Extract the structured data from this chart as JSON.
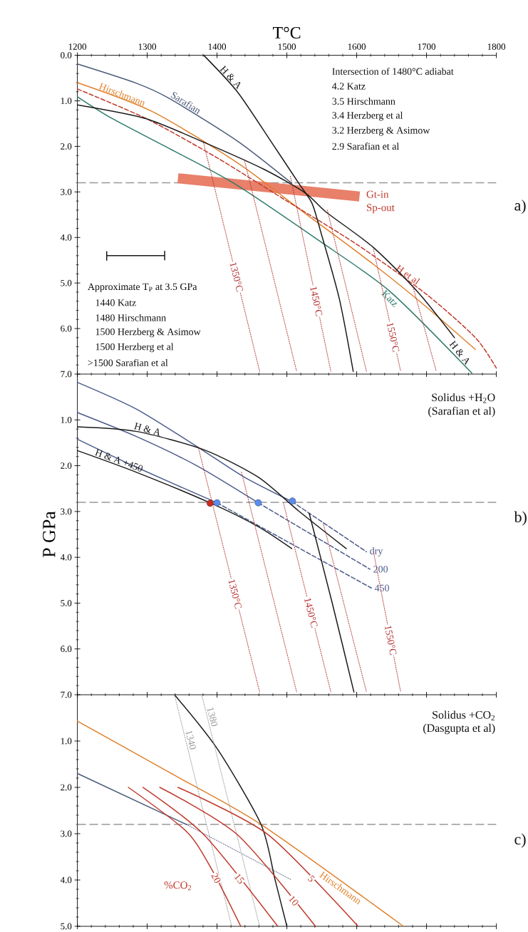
{
  "chart_data": [
    {
      "type": "line",
      "xlabel": "T°C",
      "xlim": [
        1200,
        1800
      ],
      "xticks": [
        1200,
        1300,
        1400,
        1500,
        1600,
        1700,
        1800
      ],
      "ylim": [
        7,
        0
      ],
      "yticks": [
        {
          "value": 0,
          "label": "0.0"
        },
        {
          "value": 1,
          "label": "1.0"
        },
        {
          "value": 2,
          "label": "2.0"
        },
        {
          "value": 3,
          "label": "3.0"
        },
        {
          "value": 4,
          "label": "4.0"
        },
        {
          "value": 5,
          "label": "5.0"
        },
        {
          "value": 6,
          "label": "6.0"
        },
        {
          "value": 7,
          "label": "7.0"
        }
      ],
      "ref_lines": [
        {
          "axis": "y",
          "value": 2.8,
          "color": "#999999",
          "line_style": "dashed"
        }
      ],
      "series": [
        {
          "color": "#e8806a",
          "x": [
            1344,
            1604
          ],
          "values": [
            2.7,
            3.1
          ]
        },
        {
          "name": "Sarafian",
          "color": "#4a5a7a",
          "x": [
            1200,
            1284,
            1332,
            1429,
            1507
          ],
          "values": [
            0.19,
            0.61,
            0.95,
            1.88,
            2.81
          ]
        },
        {
          "name": "Hirschmann",
          "color": "#e0802a",
          "x": [
            1200,
            1308,
            1429,
            1527,
            1624,
            1697,
            1770
          ],
          "values": [
            0.6,
            1.24,
            2.36,
            3.48,
            4.59,
            5.49,
            6.46
          ]
        },
        {
          "name": "H et al",
          "color": "#c03a2b",
          "line_style": "dashed",
          "x": [
            1200,
            1300,
            1400,
            1500,
            1600,
            1700,
            1770,
            1800
          ],
          "values": [
            0.74,
            1.4,
            2.25,
            3.2,
            4.15,
            5.25,
            6.2,
            6.87
          ]
        },
        {
          "name": "Katz",
          "color": "#2e7a6a",
          "x": [
            1200,
            1250,
            1332,
            1424,
            1546,
            1648,
            1765
          ],
          "values": [
            0.91,
            1.39,
            2.05,
            2.81,
            4.07,
            5.19,
            6.98
          ]
        },
        {
          "name": "H & A",
          "color": "#1a1a1a",
          "x": [
            1200,
            1298,
            1381,
            1468,
            1527,
            1556,
            1624,
            1687,
            1740
          ],
          "values": [
            1.09,
            1.39,
            1.91,
            2.51,
            3.03,
            3.44,
            4.22,
            5.19,
            6.2
          ]
        },
        {
          "name": "H & A",
          "color": "#1a1a1a",
          "x": [
            1381,
            1429,
            1478,
            1517,
            1536,
            1548,
            1575,
            1595
          ],
          "values": [
            0,
            0.8,
            1.91,
            2.81,
            3.25,
            3.85,
            5.34,
            6.94
          ]
        },
        {
          "name": "1350°C",
          "color": "#b52f2f",
          "line_style": "dotted",
          "x": [
            1380,
            1461
          ],
          "values": [
            1.88,
            6.94
          ]
        },
        {
          "color": "#b52f2f",
          "line_style": "dotted",
          "x": [
            1439,
            1514
          ],
          "values": [
            2.29,
            6.94
          ]
        },
        {
          "name": "1450°C",
          "color": "#b52f2f",
          "line_style": "dotted",
          "x": [
            1505,
            1563
          ],
          "values": [
            2.66,
            6.94
          ]
        },
        {
          "color": "#b52f2f",
          "line_style": "dotted",
          "x": [
            1558,
            1614
          ],
          "values": [
            3.4,
            6.94
          ]
        },
        {
          "name": "1550°C",
          "color": "#b52f2f",
          "line_style": "dotted",
          "x": [
            1624,
            1663
          ],
          "values": [
            4.26,
            6.94
          ]
        },
        {
          "color": "#b52f2f",
          "line_style": "dotted",
          "x": [
            1680,
            1714
          ],
          "values": [
            5.05,
            6.94
          ]
        },
        {
          "color": "#1a1a1a",
          "x": [
            1242,
            1242,
            1242,
            1325,
            1325,
            1325
          ],
          "values": [
            4.3,
            4.5,
            4.4,
            4.4,
            4.3,
            4.5
          ]
        }
      ],
      "annotations": [
        "Intersection of 1480°C adiabat",
        "4.2 Katz",
        "3.5 Hirschmann",
        "3.4 Herzberg et al",
        "3.2 Herzberg & Asimow",
        "2.9 Sarafian et al",
        "Approximate T$_{P}$ at 3.5 GPa",
        "1440 Katz",
        "1480 Hirschmann",
        "1500 Herzberg & Asimow",
        "1500 Herzberg et al",
        ">1500 Sarafian et al",
        "Gt-in",
        "Sp-out",
        "a)"
      ]
    },
    {
      "type": "line",
      "ylabel": "P GPa",
      "xlim": [
        1200,
        1800
      ],
      "xticks": [
        1200,
        1300,
        1400,
        1500,
        1600,
        1700,
        1800
      ],
      "ylim": [
        7,
        0
      ],
      "tick_labels": "y",
      "yticks": [
        {
          "value": 1,
          "label": "1.0"
        },
        {
          "value": 2,
          "label": "2.0"
        },
        {
          "value": 3,
          "label": "3.0"
        },
        {
          "value": 4,
          "label": "4.0"
        },
        {
          "value": 5,
          "label": "5.0"
        },
        {
          "value": 6,
          "label": "6.0"
        },
        {
          "value": 7,
          "label": "7.0"
        }
      ],
      "ref_lines": [
        {
          "axis": "y",
          "value": 2.8,
          "color": "#999999",
          "line_style": "dashed"
        }
      ],
      "series": [
        {
          "color": "#4a5a8a",
          "x": [
            1200,
            1284,
            1371,
            1439,
            1507
          ],
          "values": [
            0.18,
            0.76,
            1.58,
            2.25,
            2.78
          ]
        },
        {
          "name": "dry",
          "color": "#4a5a8a",
          "line_style": "dashed",
          "x": [
            1507,
            1614
          ],
          "values": [
            2.78,
            3.88
          ]
        },
        {
          "color": "#4a5a8a",
          "x": [
            1200,
            1284,
            1371,
            1459
          ],
          "values": [
            0.84,
            1.36,
            2.0,
            2.81
          ]
        },
        {
          "name": "200",
          "color": "#4a5a8a",
          "line_style": "dashed",
          "x": [
            1459,
            1619
          ],
          "values": [
            2.81,
            4.26
          ]
        },
        {
          "color": "#4a5a8a",
          "x": [
            1200,
            1284,
            1400
          ],
          "values": [
            1.42,
            2.03,
            2.81
          ]
        },
        {
          "name": "450",
          "color": "#4a5a8a",
          "line_style": "dashed",
          "x": [
            1400,
            1621
          ],
          "values": [
            2.81,
            4.67
          ]
        },
        {
          "name": "H & A",
          "color": "#1a1a1a",
          "x": [
            1200,
            1284,
            1381,
            1459,
            1517,
            1585
          ],
          "values": [
            1.15,
            1.25,
            1.65,
            2.25,
            2.99,
            3.81
          ]
        },
        {
          "name": "H & A +450",
          "color": "#1a1a1a",
          "x": [
            1200,
            1284,
            1390,
            1459,
            1507
          ],
          "values": [
            1.67,
            2.14,
            2.81,
            3.33,
            3.81
          ]
        },
        {
          "color": "#1a1a1a",
          "x": [
            1532,
            1565,
            1596
          ],
          "values": [
            3.04,
            5.0,
            6.94
          ]
        },
        {
          "name": "1350°C",
          "color": "#b52f2f",
          "line_style": "dotted",
          "x": [
            1373,
            1461
          ],
          "values": [
            1.59,
            6.94
          ]
        },
        {
          "color": "#b52f2f",
          "line_style": "dotted",
          "x": [
            1435,
            1514
          ],
          "values": [
            2.14,
            6.94
          ]
        },
        {
          "name": "1450°C",
          "color": "#b52f2f",
          "line_style": "dotted",
          "x": [
            1495,
            1563
          ],
          "values": [
            2.81,
            6.94
          ]
        },
        {
          "color": "#b52f2f",
          "line_style": "dotted",
          "x": [
            1552,
            1614
          ],
          "values": [
            3.25,
            6.94
          ]
        },
        {
          "name": "1550°C",
          "color": "#b52f2f",
          "line_style": "dotted",
          "x": [
            1624,
            1663
          ],
          "values": [
            3.88,
            6.94
          ]
        },
        {
          "type": "scatter",
          "marker": "circle",
          "color": "#5b8def",
          "colors": [
            "#5b8def",
            "#5b8def",
            "#5b8def",
            "#cc2a1e"
          ],
          "x": [
            1400,
            1459,
            1508,
            1390
          ],
          "values": [
            2.81,
            2.81,
            2.77,
            2.82
          ]
        }
      ],
      "annotations": [
        "Solidus +H$_{2}$O",
        "(Sarafian et al)",
        "b)"
      ]
    },
    {
      "type": "line",
      "xlim": [
        1200,
        1800
      ],
      "xticks": [
        1200,
        1300,
        1400,
        1500,
        1600,
        1700,
        1800
      ],
      "ylim": [
        5,
        0
      ],
      "tick_labels": "y",
      "yticks": [
        {
          "value": 1,
          "label": "1.0"
        },
        {
          "value": 2,
          "label": "2.0"
        },
        {
          "value": 3,
          "label": "3.0"
        },
        {
          "value": 4,
          "label": "4.0"
        },
        {
          "value": 5,
          "label": "5.0"
        }
      ],
      "ref_lines": [
        {
          "axis": "y",
          "value": 2.8,
          "color": "#999999",
          "line_style": "dashed"
        }
      ],
      "series": [
        {
          "name": "Hirschmann",
          "color": "#e0802a",
          "x": [
            1200,
            1332,
            1463,
            1667
          ],
          "values": [
            0.57,
            1.68,
            2.8,
            5.0
          ]
        },
        {
          "color": "#4a5a7a",
          "x": [
            1200,
            1356
          ],
          "values": [
            1.7,
            2.8
          ]
        },
        {
          "color": "#4a5a7a",
          "line_style": "dotted",
          "x": [
            1356,
            1507
          ],
          "values": [
            2.8,
            4.0
          ]
        },
        {
          "color": "#1a1a1a",
          "x": [
            1339,
            1400,
            1463,
            1483,
            1500
          ],
          "values": [
            0,
            1.16,
            2.8,
            3.99,
            5.0
          ]
        },
        {
          "name": "1340",
          "color": "#999999",
          "line_style": "dotted",
          "x": [
            1339,
            1421
          ],
          "values": [
            0,
            5.0
          ]
        },
        {
          "name": "1380",
          "color": "#999999",
          "line_style": "dotted",
          "x": [
            1378,
            1461
          ],
          "values": [
            0,
            5.0
          ]
        },
        {
          "name": "20",
          "color": "#c0392b",
          "x": [
            1273,
            1356,
            1392,
            1434
          ],
          "values": [
            2.0,
            2.95,
            3.76,
            5.0
          ]
        },
        {
          "name": "15",
          "color": "#c0392b",
          "x": [
            1294,
            1381,
            1487
          ],
          "values": [
            2.0,
            3.02,
            5.0
          ]
        },
        {
          "name": "10",
          "color": "#c0392b",
          "x": [
            1318,
            1429,
            1541
          ],
          "values": [
            2.0,
            3.02,
            5.0
          ]
        },
        {
          "name": "5",
          "color": "#c0392b",
          "x": [
            1344,
            1473,
            1602
          ],
          "values": [
            2.0,
            3.02,
            5.0
          ]
        }
      ],
      "annotations": [
        "Solidus +CO$_{2}$",
        "(Dasgupta et al)",
        "c)",
        "%CO$_{2}$"
      ]
    }
  ]
}
